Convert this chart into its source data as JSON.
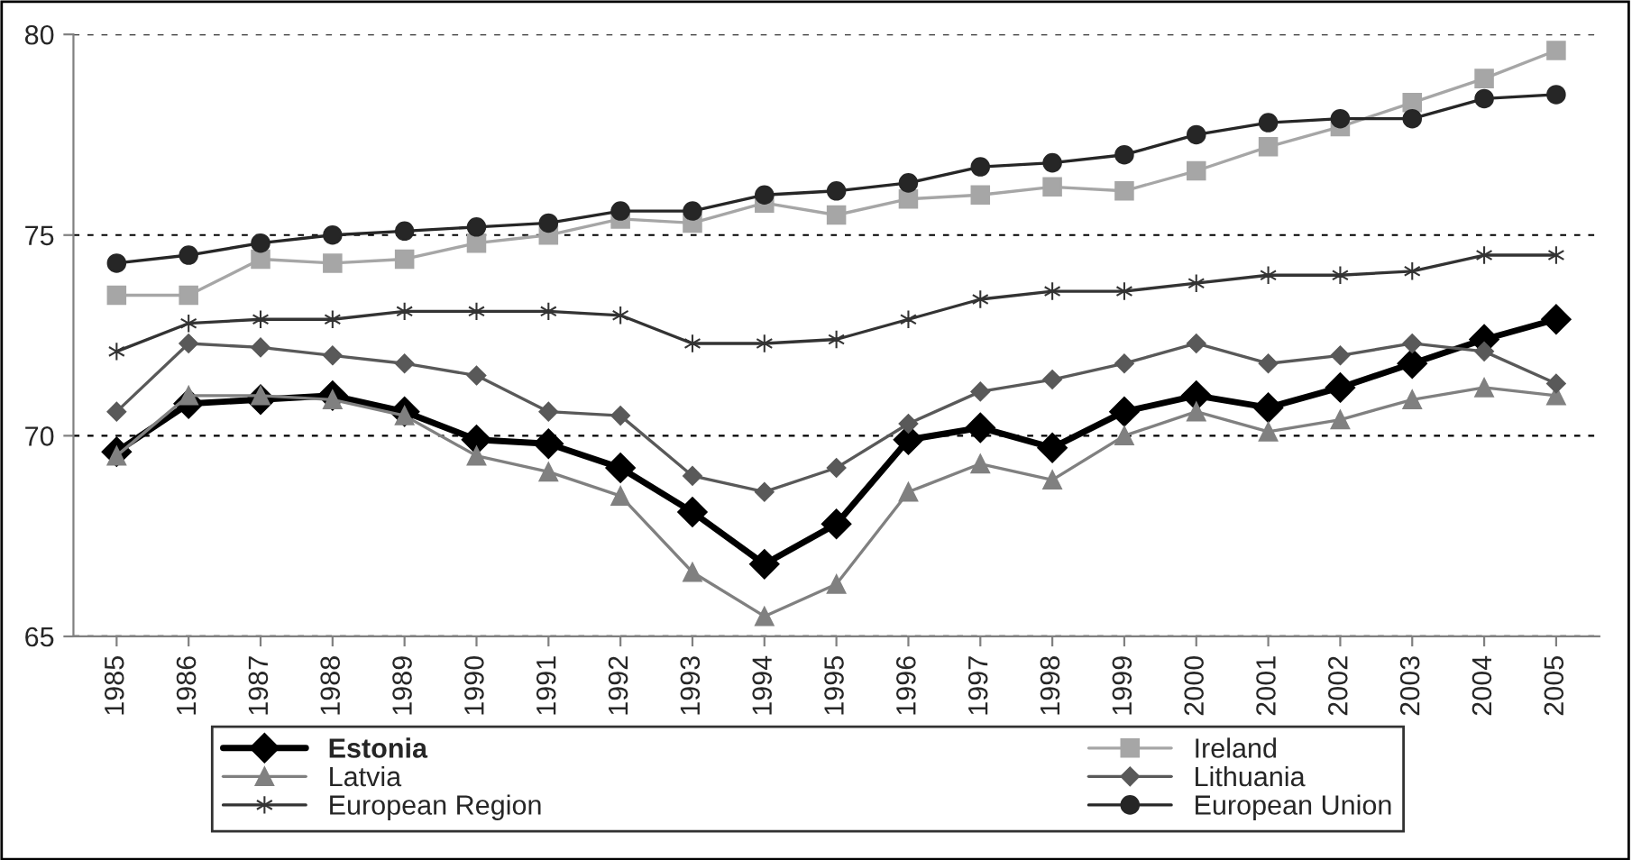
{
  "chart_data": {
    "type": "line",
    "categories": [
      "1985",
      "1986",
      "1987",
      "1988",
      "1989",
      "1990",
      "1991",
      "1992",
      "1993",
      "1994",
      "1995",
      "1996",
      "1997",
      "1998",
      "1999",
      "2000",
      "2001",
      "2002",
      "2003",
      "2004",
      "2005"
    ],
    "series": [
      {
        "name": "Estonia",
        "color": "#000000",
        "marker": "diamond",
        "values": [
          69.6,
          70.8,
          70.9,
          71.0,
          70.6,
          69.9,
          69.8,
          69.2,
          68.1,
          66.8,
          67.8,
          69.9,
          70.2,
          69.7,
          70.6,
          71.0,
          70.7,
          71.2,
          71.8,
          72.4,
          72.9
        ]
      },
      {
        "name": "Ireland",
        "color": "#a6a6a6",
        "marker": "square",
        "values": [
          73.5,
          73.5,
          74.4,
          74.3,
          74.4,
          74.8,
          75.0,
          75.4,
          75.3,
          75.8,
          75.5,
          75.9,
          76.0,
          76.2,
          76.1,
          76.6,
          77.2,
          77.7,
          78.3,
          78.9,
          79.6
        ]
      },
      {
        "name": "Latvia",
        "color": "#808080",
        "marker": "triangle",
        "values": [
          69.5,
          71.0,
          71.0,
          70.9,
          70.5,
          69.5,
          69.1,
          68.5,
          66.6,
          65.5,
          66.3,
          68.6,
          69.3,
          68.9,
          70.0,
          70.6,
          70.1,
          70.4,
          70.9,
          71.2,
          71.0
        ]
      },
      {
        "name": "Lithuania",
        "color": "#595959",
        "marker": "diamond",
        "values": [
          70.6,
          72.3,
          72.2,
          72.0,
          71.8,
          71.5,
          70.6,
          70.5,
          69.0,
          68.6,
          69.2,
          70.3,
          71.1,
          71.4,
          71.8,
          72.3,
          71.8,
          72.0,
          72.3,
          72.1,
          71.3
        ]
      },
      {
        "name": "European Region",
        "color": "#333333",
        "marker": "cross",
        "values": [
          72.1,
          72.8,
          72.9,
          72.9,
          73.1,
          73.1,
          73.1,
          73.0,
          72.3,
          72.3,
          72.4,
          72.9,
          73.4,
          73.6,
          73.6,
          73.8,
          74.0,
          74.0,
          74.1,
          74.5,
          74.5
        ]
      },
      {
        "name": "European Union",
        "color": "#262626",
        "marker": "circle",
        "values": [
          74.3,
          74.5,
          74.8,
          75.0,
          75.1,
          75.2,
          75.3,
          75.6,
          75.6,
          76.0,
          76.1,
          76.3,
          76.7,
          76.8,
          77.0,
          77.5,
          77.8,
          77.9,
          77.9,
          78.4,
          78.5
        ]
      }
    ],
    "ylim": [
      65,
      80
    ],
    "yticks": [
      65,
      70,
      75,
      80
    ],
    "grid": "y",
    "line_style": "solid",
    "legend": "bottom"
  }
}
